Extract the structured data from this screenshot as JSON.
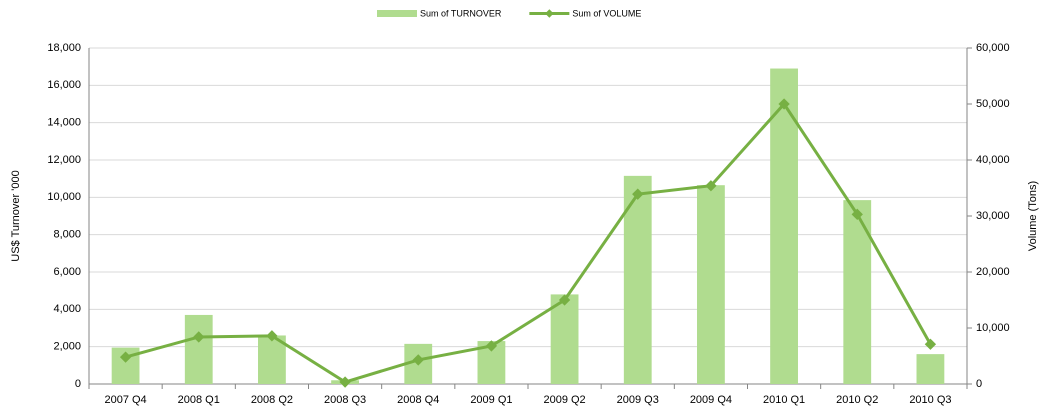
{
  "chart_data": {
    "type": "combo",
    "categories": [
      "2007 Q4",
      "2008 Q1",
      "2008 Q2",
      "2008 Q3",
      "2008 Q4",
      "2009 Q1",
      "2009 Q2",
      "2009 Q3",
      "2009 Q4",
      "2010 Q1",
      "2010 Q2",
      "2010 Q3"
    ],
    "series": [
      {
        "name": "Sum of TURNOVER",
        "type": "bar",
        "axis": "y",
        "color": "#b0dc8f",
        "values": [
          1950,
          3700,
          2600,
          200,
          2150,
          2300,
          4800,
          11150,
          10650,
          16900,
          9850,
          1600
        ]
      },
      {
        "name": "Sum of VOLUME",
        "type": "line",
        "axis": "y2",
        "color": "#77b043",
        "values": [
          4800,
          8400,
          8600,
          350,
          4300,
          6800,
          15000,
          33900,
          35400,
          50000,
          30300,
          7100
        ]
      }
    ],
    "ylabel": "US$ Turnover '000",
    "y2label": "Volume (Tons)",
    "ylim": [
      0,
      18000
    ],
    "yticks": [
      0,
      {
        "value": 2000,
        "label": "2,000"
      },
      {
        "value": 4000,
        "label": "4,000"
      },
      {
        "value": 6000,
        "label": "6,000"
      },
      {
        "value": 8000,
        "label": "8,000"
      },
      {
        "value": 10000,
        "label": "10,000"
      },
      {
        "value": 12000,
        "label": "12,000"
      },
      {
        "value": 14000,
        "label": "14,000"
      },
      {
        "value": 16000,
        "label": "16,000"
      },
      {
        "value": 18000,
        "label": "18,000"
      }
    ],
    "y2lim": [
      0,
      60000
    ],
    "y2ticks": [
      0,
      {
        "value": 10000,
        "label": "10,000"
      },
      {
        "value": 20000,
        "label": "20,000"
      },
      {
        "value": 30000,
        "label": "30,000"
      },
      {
        "value": 40000,
        "label": "40,000"
      },
      {
        "value": 50000,
        "label": "50,000"
      },
      {
        "value": 60000,
        "label": "60,000"
      }
    ],
    "grid": true,
    "legend": "top"
  }
}
